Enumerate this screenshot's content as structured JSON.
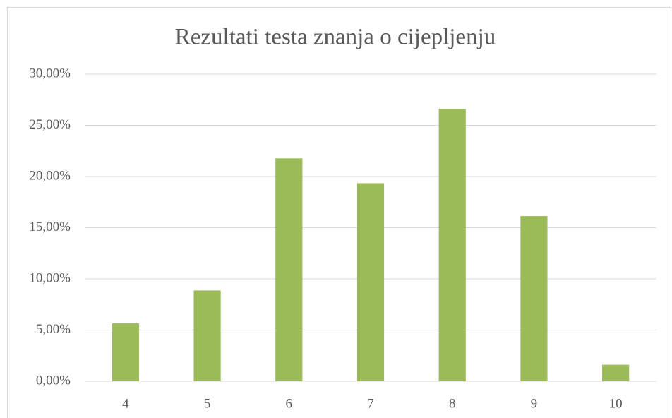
{
  "chart_data": {
    "type": "bar",
    "title": "Rezultati testa znanja o cijepljenju",
    "categories": [
      "4",
      "5",
      "6",
      "7",
      "8",
      "9",
      "10"
    ],
    "values": [
      5.65,
      8.87,
      21.77,
      19.35,
      26.61,
      16.13,
      1.61
    ],
    "color": "#9bbb59",
    "ylim": [
      0,
      30
    ],
    "yticks": [
      {
        "value": 0,
        "label": "0,00%"
      },
      {
        "value": 5,
        "label": "5,00%"
      },
      {
        "value": 10,
        "label": "10,00%"
      },
      {
        "value": 15,
        "label": "15,00%"
      },
      {
        "value": 20,
        "label": "20,00%"
      },
      {
        "value": 25,
        "label": "25,00%"
      },
      {
        "value": 30,
        "label": "30,00%"
      }
    ],
    "grid": true
  }
}
